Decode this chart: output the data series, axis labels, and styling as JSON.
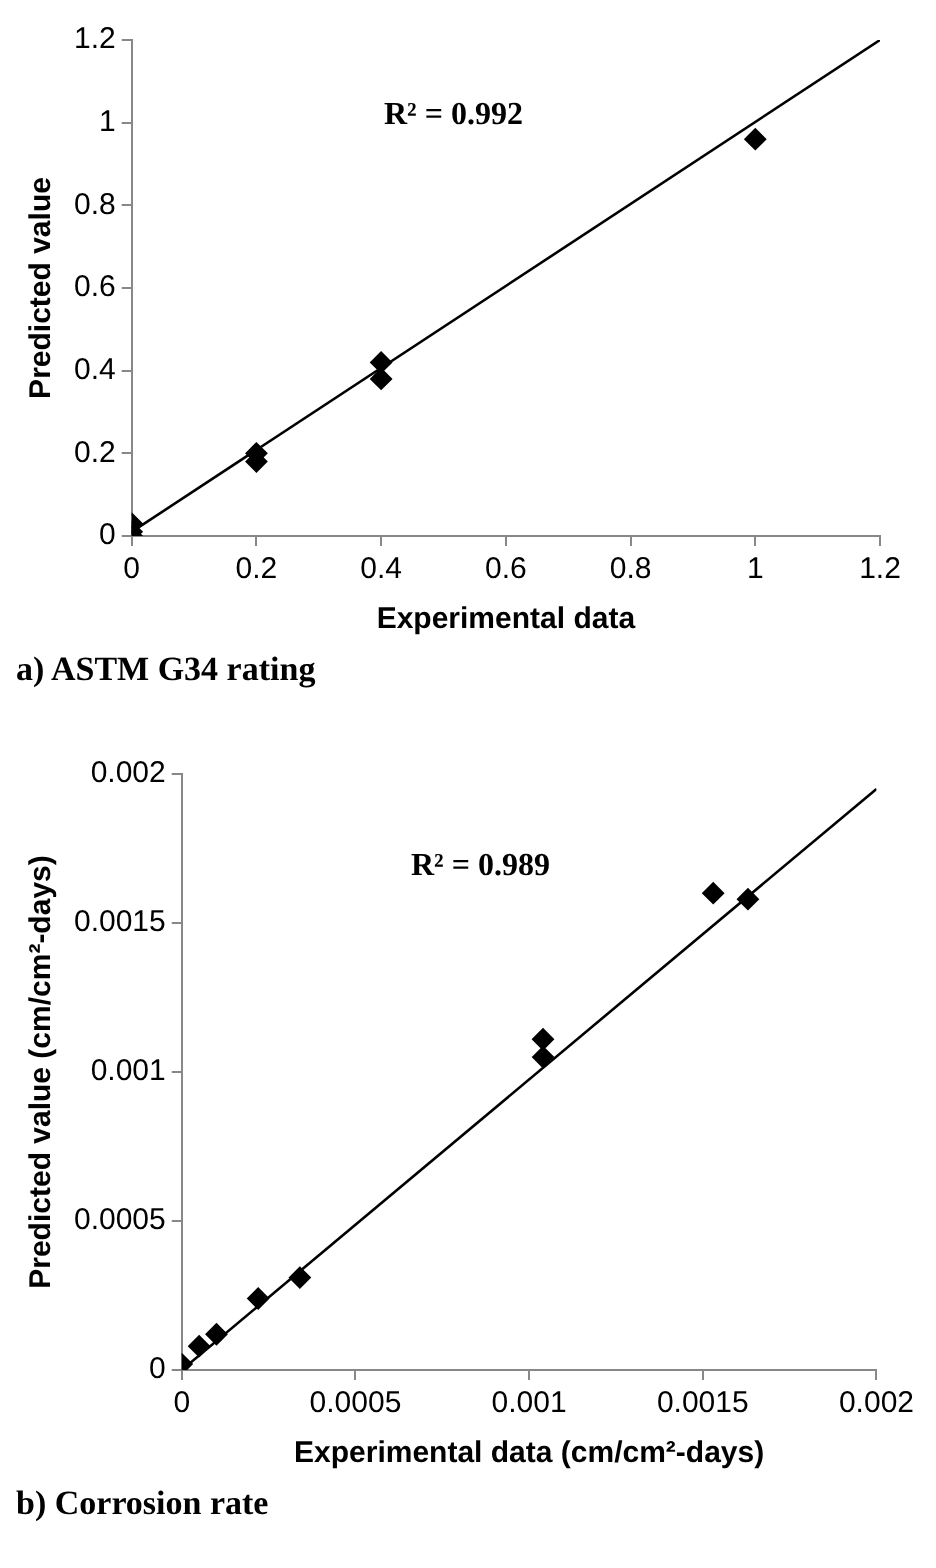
{
  "chart_data": [
    {
      "type": "scatter",
      "xlabel": "Experimental data",
      "ylabel": "Predicted value",
      "marker": "diamond",
      "legend": false,
      "xlim": [
        0,
        1.2
      ],
      "xticks": [
        0,
        0.2,
        0.4,
        0.6,
        0.8,
        1,
        1.2
      ],
      "ylim": [
        0,
        1.2
      ],
      "yticks": [
        0,
        0.2,
        0.4,
        0.6,
        0.8,
        1,
        1.2
      ],
      "annotations": [
        "R² = 0.992",
        "a) ASTM G34 rating"
      ],
      "series": [
        {
          "color": "#000000",
          "x": [
            0,
            0,
            0,
            0.2,
            0.2,
            0.4,
            0.4,
            1
          ],
          "values": [
            0,
            0.01,
            0.03,
            0.18,
            0.2,
            0.38,
            0.42,
            0.96
          ]
        },
        {
          "type": "line",
          "marker": "none",
          "line_style": "solid",
          "color": "#000000",
          "x": [
            0,
            1.2
          ],
          "values": [
            0.01,
            1.2
          ]
        }
      ]
    },
    {
      "type": "scatter",
      "xlabel": "Experimental data (cm/cm²-days)",
      "ylabel": "Predicted value (cm/cm²-days)",
      "marker": "diamond",
      "legend": false,
      "xlim": [
        0,
        0.002
      ],
      "xticks": [
        0,
        0.0005,
        0.001,
        0.0015,
        0.002
      ],
      "ylim": [
        0,
        0.002
      ],
      "yticks": [
        0,
        0.0005,
        0.001,
        0.0015,
        0.002
      ],
      "annotations": [
        "R² = 0.989",
        "b) Corrosion rate"
      ],
      "series": [
        {
          "color": "#000000",
          "x": [
            0,
            5e-05,
            0.0001,
            0.00022,
            0.00034,
            0.00104,
            0.00104,
            0.00153,
            0.00163
          ],
          "values": [
            2e-05,
            8e-05,
            0.00012,
            0.00024,
            0.00031,
            0.00105,
            0.00111,
            0.0016,
            0.00158
          ]
        },
        {
          "type": "line",
          "marker": "none",
          "line_style": "solid",
          "color": "#000000",
          "x": [
            0,
            0.002
          ],
          "values": [
            0,
            0.00195
          ]
        }
      ]
    }
  ]
}
